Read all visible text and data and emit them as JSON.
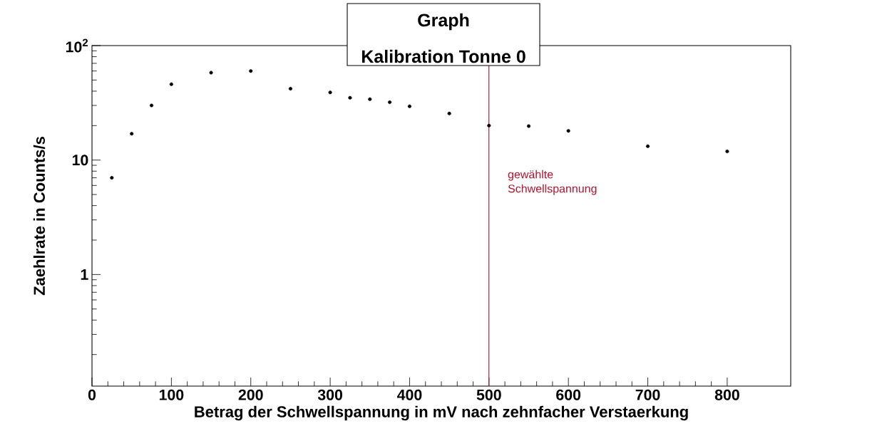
{
  "chart_data": {
    "type": "scatter",
    "title": "Graph",
    "subtitle": "Kalibration Tonne 0",
    "xlabel": "Betrag der Schwellspannung in mV nach zehnfacher Verstaerkung",
    "ylabel": "Zaehlrate in Counts/s",
    "x": [
      25,
      50,
      75,
      100,
      150,
      200,
      250,
      300,
      325,
      350,
      375,
      400,
      450,
      500,
      550,
      600,
      700,
      800
    ],
    "values": [
      7,
      17,
      30,
      46,
      58,
      60,
      42,
      39,
      35,
      34,
      32,
      29.5,
      25.5,
      20,
      19.8,
      18,
      13.2,
      11.9
    ],
    "color": "#000000",
    "log": "y",
    "xlim": [
      0,
      880
    ],
    "ylim": [
      0.106,
      100
    ],
    "xticks": [
      0,
      100,
      200,
      300,
      400,
      500,
      600,
      700,
      800
    ],
    "yticks": [
      1,
      10,
      {
        "value": 100,
        "label": "10$^{2}$"
      }
    ],
    "ref_lines": [
      {
        "axis": "x",
        "value": 500,
        "label": "gewählte Schwellspannung",
        "color": "#b3132e"
      }
    ]
  }
}
